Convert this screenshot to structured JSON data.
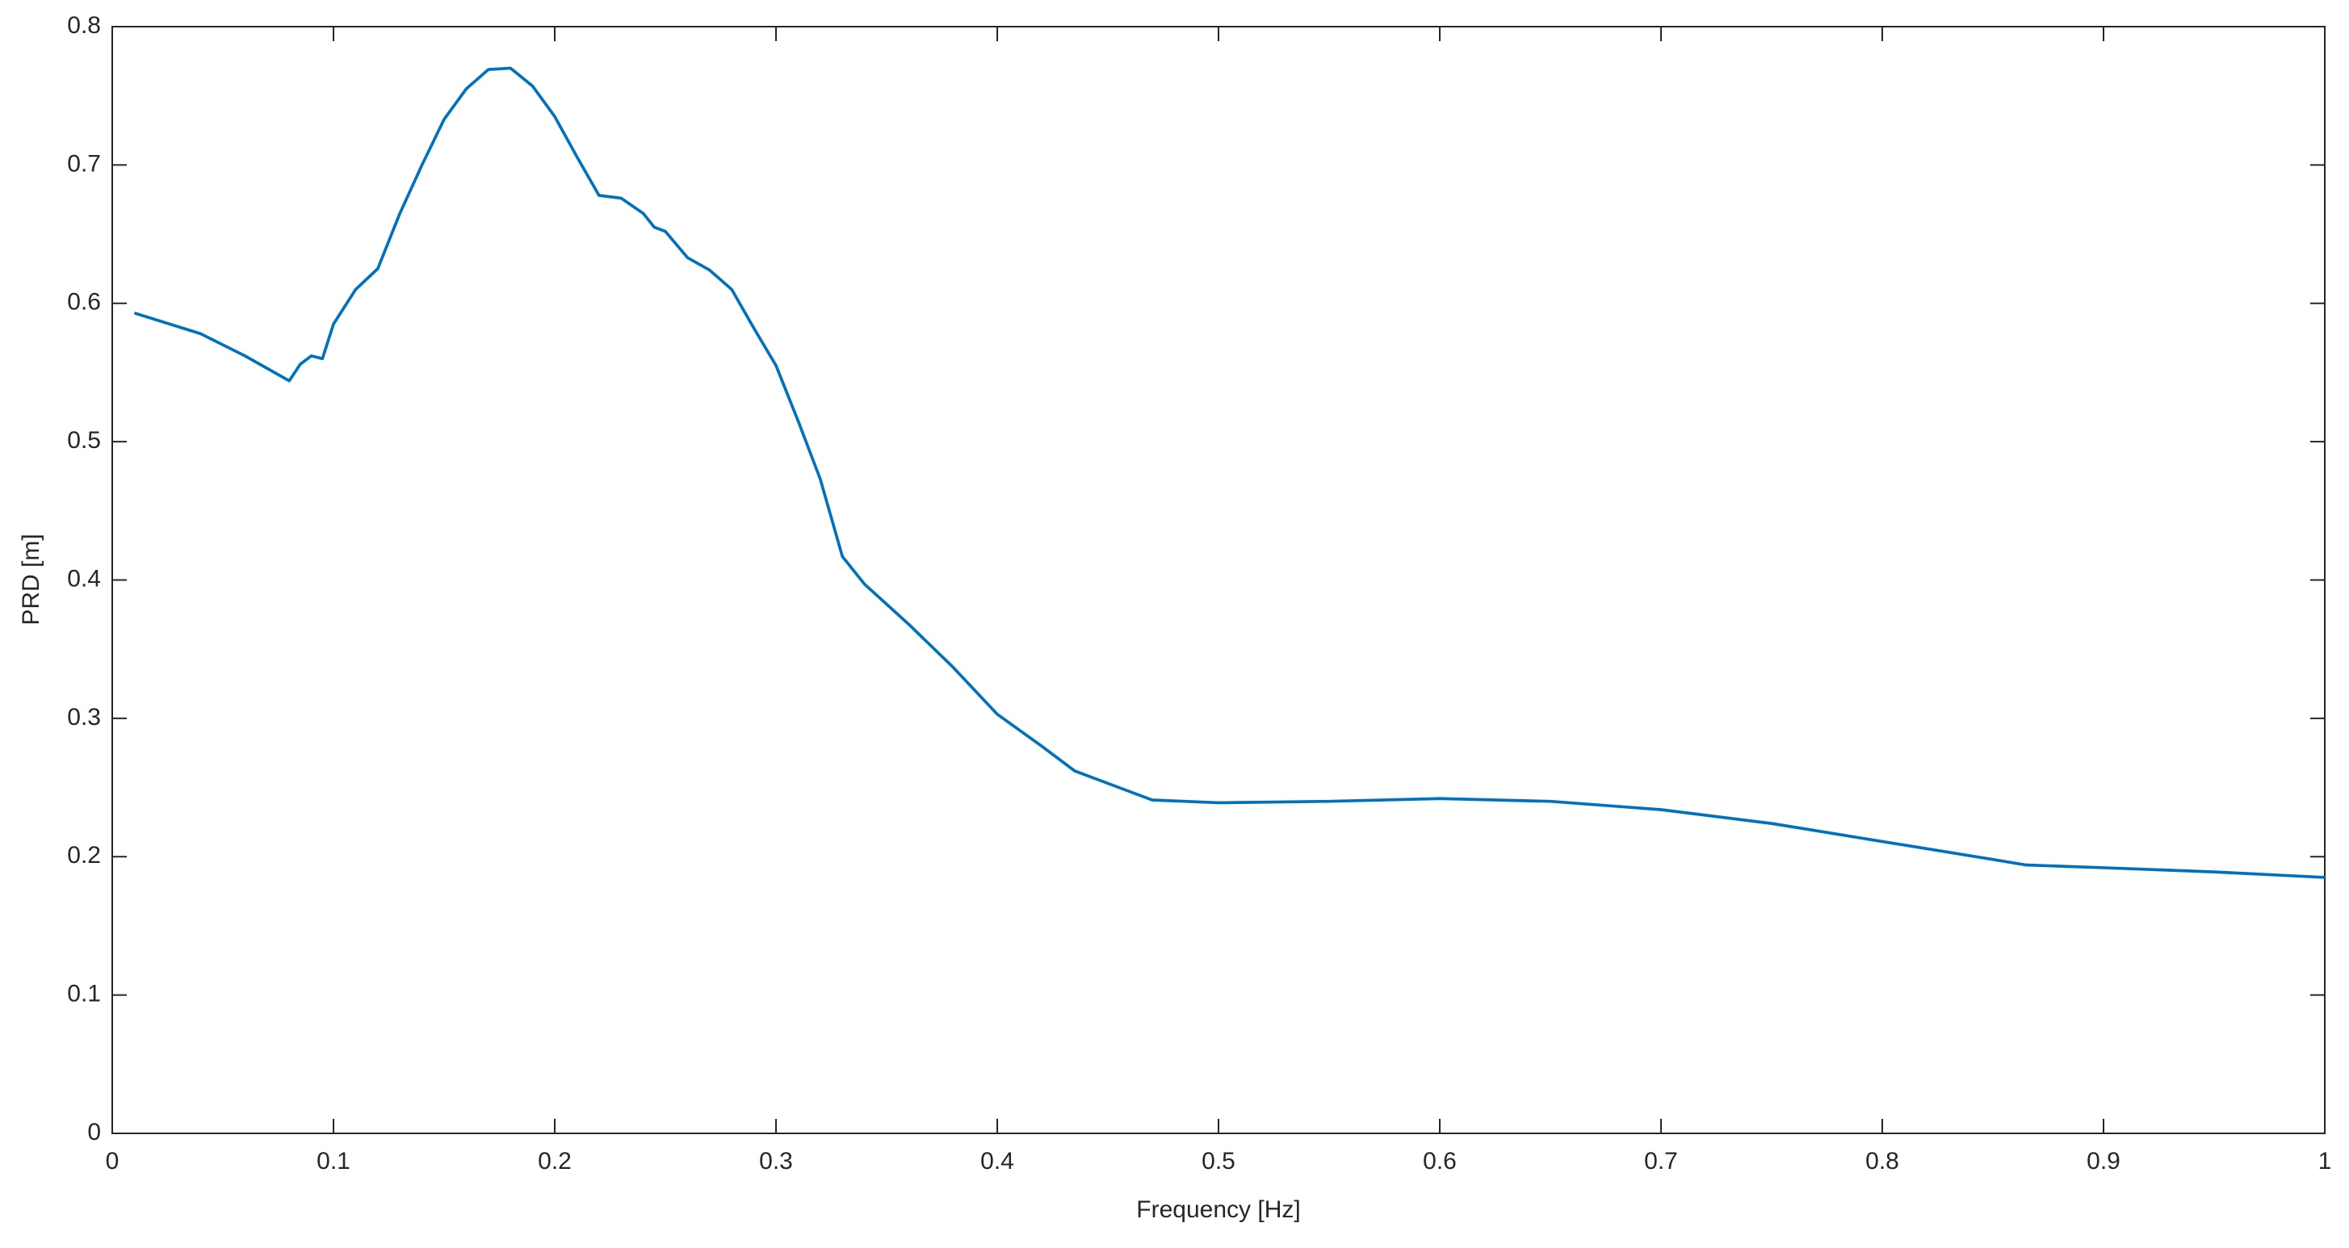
{
  "chart_data": {
    "type": "line",
    "xlabel": "Frequency [Hz]",
    "ylabel": "PRD [m]",
    "x": [
      0.01,
      0.04,
      0.06,
      0.08,
      0.085,
      0.09,
      0.095,
      0.1,
      0.11,
      0.12,
      0.13,
      0.14,
      0.15,
      0.16,
      0.17,
      0.18,
      0.19,
      0.2,
      0.21,
      0.22,
      0.23,
      0.24,
      0.245,
      0.25,
      0.26,
      0.27,
      0.28,
      0.29,
      0.3,
      0.31,
      0.32,
      0.33,
      0.34,
      0.36,
      0.38,
      0.4,
      0.42,
      0.435,
      0.45,
      0.47,
      0.5,
      0.55,
      0.6,
      0.65,
      0.7,
      0.75,
      0.8,
      0.85,
      0.865,
      0.9,
      0.95,
      1.0
    ],
    "series": [
      {
        "color": "#0072bd",
        "values": [
          0.593,
          0.578,
          0.562,
          0.544,
          0.556,
          0.562,
          0.56,
          0.585,
          0.61,
          0.625,
          0.665,
          0.7,
          0.733,
          0.755,
          0.769,
          0.77,
          0.757,
          0.735,
          0.706,
          0.678,
          0.676,
          0.665,
          0.655,
          0.652,
          0.633,
          0.624,
          0.61,
          0.582,
          0.555,
          0.515,
          0.473,
          0.417,
          0.397,
          0.368,
          0.337,
          0.303,
          0.28,
          0.262,
          0.253,
          0.241,
          0.239,
          0.24,
          0.242,
          0.24,
          0.234,
          0.224,
          0.211,
          0.198,
          0.194,
          0.192,
          0.189,
          0.185
        ]
      }
    ],
    "xlim": [
      0,
      1
    ],
    "xticks": [
      0,
      0.1,
      0.2,
      0.3,
      0.4,
      0.5,
      0.6,
      0.7,
      0.8,
      0.9,
      1
    ],
    "ylim": [
      0,
      0.8
    ],
    "yticks": [
      0,
      0.1,
      0.2,
      0.3,
      0.4,
      0.5,
      0.6,
      0.7,
      0.8
    ],
    "grid": false
  }
}
